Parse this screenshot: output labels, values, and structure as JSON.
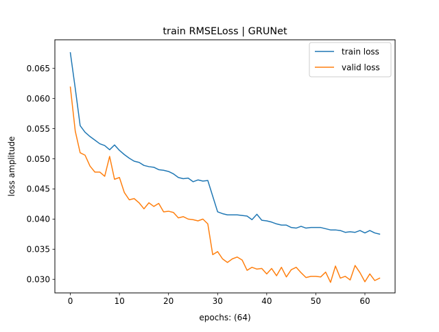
{
  "chart_data": {
    "type": "line",
    "title": "train RMSELoss | GRUNet",
    "xlabel": "epochs: (64)",
    "ylabel": "loss amplitude",
    "xlim": [
      -3.15,
      66.15
    ],
    "ylim": [
      0.02775,
      0.06975
    ],
    "xticks": [
      0,
      10,
      20,
      30,
      40,
      50,
      60
    ],
    "yticks": [
      0.03,
      0.035,
      0.04,
      0.045,
      0.05,
      0.055,
      0.06,
      0.065
    ],
    "ytick_labels": [
      "0.030",
      "0.035",
      "0.040",
      "0.045",
      "0.050",
      "0.055",
      "0.060",
      "0.065"
    ],
    "legend_position": "top-right",
    "grid": false,
    "series": [
      {
        "name": "train loss",
        "color": "#1f77b4",
        "values": [
          0.0676,
          0.0617,
          0.0555,
          0.0544,
          0.0537,
          0.0531,
          0.0525,
          0.0522,
          0.0515,
          0.0523,
          0.0514,
          0.0507,
          0.0501,
          0.0496,
          0.0494,
          0.0489,
          0.0487,
          0.0486,
          0.0482,
          0.0481,
          0.0479,
          0.0475,
          0.0469,
          0.0467,
          0.0468,
          0.0462,
          0.0465,
          0.0463,
          0.0464,
          0.0438,
          0.0412,
          0.0409,
          0.0407,
          0.0407,
          0.0407,
          0.0406,
          0.0405,
          0.0399,
          0.0408,
          0.0398,
          0.0397,
          0.0395,
          0.0392,
          0.039,
          0.039,
          0.0386,
          0.0385,
          0.0388,
          0.0385,
          0.0386,
          0.0386,
          0.0386,
          0.0384,
          0.0382,
          0.0382,
          0.0381,
          0.0378,
          0.0379,
          0.0378,
          0.0381,
          0.0377,
          0.0381,
          0.0377,
          0.0375
        ]
      },
      {
        "name": "valid loss",
        "color": "#ff7f0e",
        "values": [
          0.0619,
          0.0546,
          0.051,
          0.0506,
          0.0488,
          0.0478,
          0.0478,
          0.0471,
          0.0504,
          0.0466,
          0.0469,
          0.0444,
          0.0432,
          0.0434,
          0.0427,
          0.0417,
          0.0427,
          0.0421,
          0.0426,
          0.0412,
          0.0413,
          0.0411,
          0.0402,
          0.0404,
          0.04,
          0.0399,
          0.0397,
          0.04,
          0.0392,
          0.0341,
          0.0346,
          0.0334,
          0.0328,
          0.0334,
          0.0337,
          0.0332,
          0.0315,
          0.032,
          0.0317,
          0.0318,
          0.0309,
          0.0318,
          0.0306,
          0.032,
          0.0304,
          0.0316,
          0.032,
          0.0311,
          0.0303,
          0.0305,
          0.0305,
          0.0304,
          0.0312,
          0.0295,
          0.0322,
          0.0302,
          0.0305,
          0.0299,
          0.0323,
          0.0311,
          0.0296,
          0.0309,
          0.0298,
          0.0302
        ]
      }
    ]
  }
}
